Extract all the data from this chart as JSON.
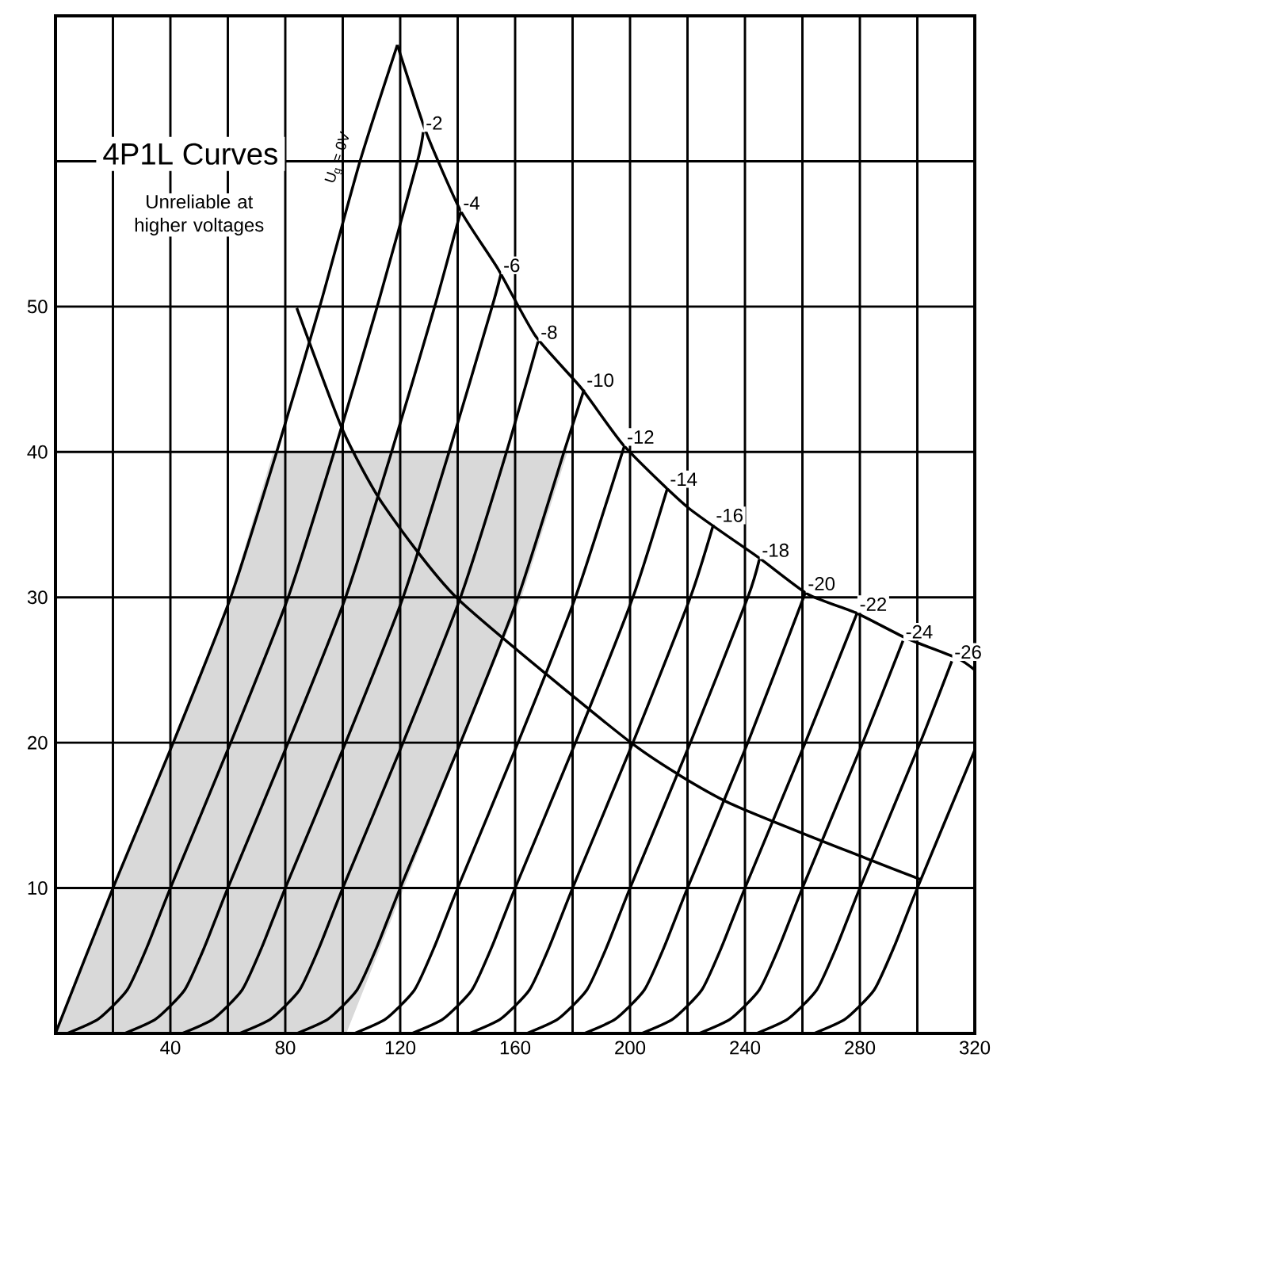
{
  "chart_data": {
    "type": "line",
    "title": "4P1L Curves",
    "annotations": [
      "Unreliable at higher voltages"
    ],
    "xlim": [
      0,
      320
    ],
    "ylim": [
      0,
      70
    ],
    "xticks": [
      {
        "value": 20,
        "label": null
      },
      40,
      {
        "value": 60,
        "label": null
      },
      80,
      {
        "value": 100,
        "label": null
      },
      120,
      {
        "value": 140,
        "label": null
      },
      160,
      {
        "value": 180,
        "label": null
      },
      200,
      {
        "value": 220,
        "label": null
      },
      240,
      {
        "value": 260,
        "label": null
      },
      280,
      {
        "value": 300,
        "label": null
      },
      320
    ],
    "yticks": [
      10,
      20,
      30,
      40,
      50,
      {
        "value": 60,
        "label": null
      }
    ],
    "grid": true,
    "marker": "none",
    "line_style": "solid",
    "series": [
      {
        "type": "area",
        "color": "#d9d9d9",
        "x": [
          0,
          20,
          41,
          61,
          76,
          178,
          162,
          141,
          121,
          101
        ],
        "values": [
          0,
          10,
          20,
          30,
          40,
          40,
          30,
          20,
          10,
          0
        ]
      },
      {
        "name": "U$_{g}$ = 0V",
        "color": "#000000",
        "x": [
          0,
          20,
          41,
          61,
          77,
          92,
          106,
          119
        ],
        "values": [
          0,
          10,
          20,
          30,
          40,
          50,
          60,
          68
        ]
      },
      {
        "name": "-2",
        "color": "#000000",
        "x": [
          4,
          15,
          25,
          32,
          40,
          61,
          81,
          97,
          112,
          126,
          128
        ],
        "values": [
          0,
          1,
          3,
          6,
          10,
          20,
          30,
          40,
          50,
          60,
          62
        ]
      },
      {
        "name": "-4",
        "color": "#000000",
        "x": [
          24,
          35,
          45,
          52,
          60,
          81,
          101,
          117,
          132,
          141
        ],
        "values": [
          0,
          1,
          3,
          6,
          10,
          20,
          30,
          40,
          50,
          56.5
        ]
      },
      {
        "name": "-6",
        "color": "#000000",
        "x": [
          44,
          55,
          65,
          72,
          80,
          101,
          121,
          137,
          152,
          155
        ],
        "values": [
          0,
          1,
          3,
          6,
          10,
          20,
          30,
          40,
          50,
          52.2
        ]
      },
      {
        "name": "-8",
        "color": "#000000",
        "x": [
          64,
          75,
          85,
          92,
          100,
          121,
          141,
          157,
          168
        ],
        "values": [
          0,
          1,
          3,
          6,
          10,
          20,
          30,
          40,
          47.6
        ]
      },
      {
        "name": "-10",
        "color": "#000000",
        "x": [
          84,
          95,
          105,
          112,
          120,
          141,
          161,
          177,
          184
        ],
        "values": [
          0,
          1,
          3,
          6,
          10,
          20,
          30,
          40,
          44.3
        ]
      },
      {
        "name": "-12",
        "color": "#000000",
        "x": [
          104,
          115,
          125,
          132,
          140,
          161,
          181,
          198
        ],
        "values": [
          0,
          1,
          3,
          6,
          10,
          20,
          30,
          40.4
        ]
      },
      {
        "name": "-14",
        "color": "#000000",
        "x": [
          124,
          135,
          145,
          152,
          160,
          181,
          201,
          213
        ],
        "values": [
          0,
          1,
          3,
          6,
          10,
          20,
          30,
          37.5
        ]
      },
      {
        "name": "-16",
        "color": "#000000",
        "x": [
          144,
          155,
          165,
          172,
          180,
          201,
          221,
          229
        ],
        "values": [
          0,
          1,
          3,
          6,
          10,
          20,
          30,
          35
        ]
      },
      {
        "name": "-18",
        "color": "#000000",
        "x": [
          164,
          175,
          185,
          192,
          200,
          221,
          241,
          245
        ],
        "values": [
          0,
          1,
          3,
          6,
          10,
          20,
          30,
          32.6
        ]
      },
      {
        "name": "-20",
        "color": "#000000",
        "x": [
          184,
          195,
          205,
          212,
          220,
          241,
          261
        ],
        "values": [
          0,
          1,
          3,
          6,
          10,
          20,
          30.3
        ]
      },
      {
        "name": "-22",
        "color": "#000000",
        "x": [
          204,
          215,
          225,
          232,
          240,
          261,
          279
        ],
        "values": [
          0,
          1,
          3,
          6,
          10,
          20,
          28.9
        ]
      },
      {
        "name": "-24",
        "color": "#000000",
        "x": [
          224,
          235,
          245,
          252,
          260,
          281,
          295
        ],
        "values": [
          0,
          1,
          3,
          6,
          10,
          20,
          27
        ]
      },
      {
        "name": "-26",
        "color": "#000000",
        "x": [
          244,
          255,
          265,
          272,
          280,
          301,
          312
        ],
        "values": [
          0,
          1,
          3,
          6,
          10,
          20,
          25.6
        ]
      },
      {
        "color": "#000000",
        "x": [
          264,
          275,
          285,
          292,
          300,
          320
        ],
        "values": [
          0,
          1,
          3,
          6,
          10,
          19.5
        ]
      },
      {
        "color": "#000000",
        "x": [
          119,
          129,
          141,
          154,
          167,
          183,
          198,
          220,
          245,
          262,
          279,
          296,
          314,
          320
        ],
        "values": [
          68,
          62,
          56.6,
          52.6,
          48,
          44.4,
          40.4,
          36.2,
          32.7,
          30.2,
          28.9,
          27.2,
          25.8,
          25
        ]
      },
      {
        "color": "#000000",
        "x": [
          84,
          100,
          114,
          140,
          201,
          234,
          284,
          301
        ],
        "values": [
          49.9,
          41.5,
          36.4,
          29.9,
          19.9,
          15.9,
          11.9,
          10.6
        ]
      }
    ]
  }
}
